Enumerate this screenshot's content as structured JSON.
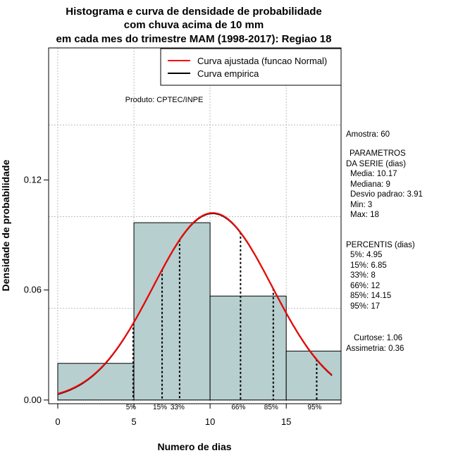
{
  "chart_data": {
    "type": "bar",
    "title_lines": [
      "Histograma e curva de densidade de probabilidade",
      "com chuva acima de 10 mm",
      "em cada mes do trimestre MAM (1998-2017): Regiao 18"
    ],
    "xlabel": "Numero de dias",
    "ylabel": "Densidade de probabilidade",
    "xlim": [
      -0.6,
      18.6
    ],
    "ylim": [
      -0.002,
      0.192
    ],
    "x_ticks": [
      0,
      5,
      10,
      15
    ],
    "y_ticks": [
      0.0,
      0.06,
      0.12
    ],
    "y_tick_labels": [
      "0.00",
      "0.06",
      "0.12"
    ],
    "grid": true,
    "grid_x": [
      0,
      5,
      10,
      15
    ],
    "grid_y": [
      0.05,
      0.1,
      0.15
    ],
    "bins": [
      {
        "from": 0,
        "to": 5,
        "density": 0.02
      },
      {
        "from": 5,
        "to": 10,
        "density": 0.0967
      },
      {
        "from": 10,
        "to": 15,
        "density": 0.0567
      },
      {
        "from": 15,
        "to": 18.6,
        "density": 0.0267
      }
    ],
    "normal_curve": {
      "name": "Curva ajustada (funcao Normal)",
      "color": "#ff0000",
      "mean": 10.17,
      "sd": 3.91,
      "x_from": 0,
      "x_to": 18
    },
    "empirical_curve": {
      "name": "Curva empirica",
      "color": "#000000"
    },
    "percentile_lines": [
      {
        "label": "5%",
        "x": 4.95
      },
      {
        "label": "15%",
        "x": 6.85
      },
      {
        "label": "33%",
        "x": 8
      },
      {
        "label": "66%",
        "x": 12
      },
      {
        "label": "85%",
        "x": 14.15
      },
      {
        "label": "95%",
        "x": 17
      }
    ],
    "legend_position": "top-right",
    "source_note": "Produto: CPTEC/INPE",
    "bar_color": "#b7cfce"
  },
  "stats_panel": {
    "amostra": "Amostra: 60",
    "param_title_1": "PARAMETROS",
    "param_title_2": "DA SERIE (dias)",
    "media": "Media: 10.17",
    "mediana": "Mediana: 9",
    "desvio": "Desvio padrao: 3.91",
    "min": "Min: 3",
    "max": "Max: 18",
    "pct_title": "PERCENTIS (dias)",
    "p5": "5%: 4.95",
    "p15": "15%: 6.85",
    "p33": "33%: 8",
    "p66": "66%: 12",
    "p85": "85%: 14.15",
    "p95": "95%: 17",
    "curtose": "Curtose: 1.06",
    "assimetria": "Assimetria: 0.36"
  }
}
